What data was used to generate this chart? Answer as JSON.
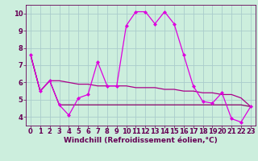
{
  "xlabel": "Windchill (Refroidissement éolien,°C)",
  "x": [
    0,
    1,
    2,
    3,
    4,
    5,
    6,
    7,
    8,
    9,
    10,
    11,
    12,
    13,
    14,
    15,
    16,
    17,
    18,
    19,
    20,
    21,
    22,
    23
  ],
  "line1": [
    7.6,
    5.5,
    6.1,
    4.7,
    4.1,
    5.1,
    5.3,
    7.2,
    5.8,
    5.8,
    9.3,
    10.1,
    10.1,
    9.4,
    10.1,
    9.4,
    7.6,
    5.8,
    4.9,
    4.8,
    5.4,
    3.9,
    3.7,
    4.6
  ],
  "line2": [
    7.6,
    5.5,
    6.1,
    4.7,
    4.7,
    4.7,
    4.7,
    4.7,
    4.7,
    4.7,
    4.7,
    4.7,
    4.7,
    4.7,
    4.7,
    4.7,
    4.7,
    4.7,
    4.7,
    4.7,
    4.7,
    4.7,
    4.7,
    4.6
  ],
  "line3": [
    7.6,
    5.5,
    6.1,
    6.1,
    6.0,
    5.9,
    5.9,
    5.8,
    5.8,
    5.8,
    5.8,
    5.7,
    5.7,
    5.7,
    5.6,
    5.6,
    5.5,
    5.5,
    5.4,
    5.4,
    5.3,
    5.3,
    5.1,
    4.6
  ],
  "line_color1": "#dd00dd",
  "line_color2": "#880066",
  "line_color3": "#aa0088",
  "bg_color": "#cceedd",
  "grid_color": "#aacccc",
  "axis_color": "#660055",
  "ylim": [
    3.5,
    10.5
  ],
  "xlim": [
    -0.5,
    23.5
  ],
  "yticks": [
    4,
    5,
    6,
    7,
    8,
    9,
    10
  ],
  "xticks": [
    0,
    1,
    2,
    3,
    4,
    5,
    6,
    7,
    8,
    9,
    10,
    11,
    12,
    13,
    14,
    15,
    16,
    17,
    18,
    19,
    20,
    21,
    22,
    23
  ],
  "fontsize_label": 6.5,
  "fontsize_tick": 6.0,
  "marker": "D",
  "markersize": 2.0,
  "linewidth": 0.9
}
